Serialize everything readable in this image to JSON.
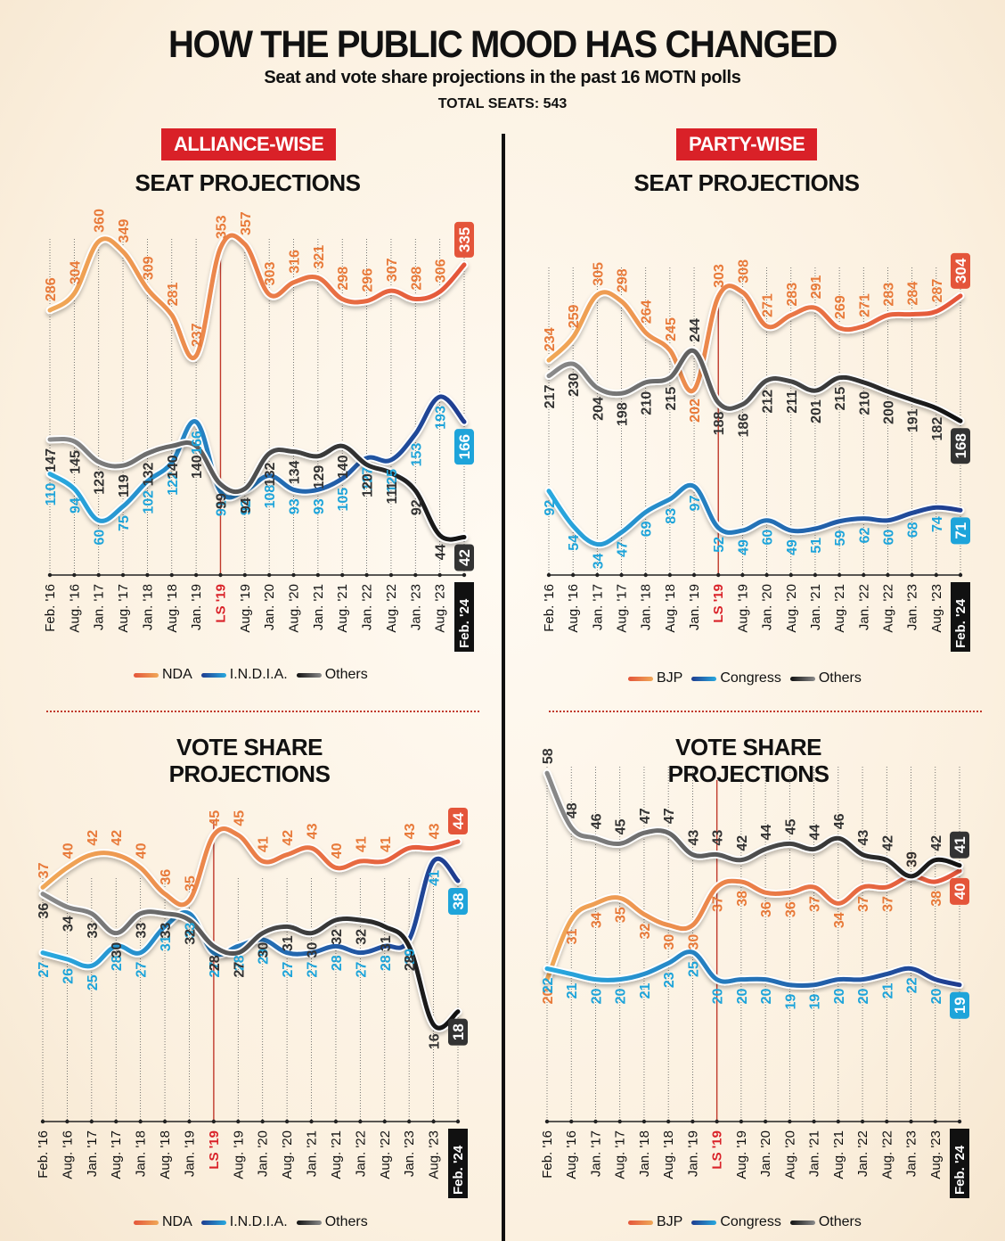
{
  "header": {
    "title": "HOW THE PUBLIC MOOD HAS CHANGED",
    "subtitle": "Seat and vote share projections in the past 16 MOTN polls",
    "total_seats": "TOTAL SEATS: 543"
  },
  "sections": {
    "left_tag": "ALLIANCE-WISE",
    "right_tag": "PARTY-WISE",
    "seat_title": "SEAT PROJECTIONS",
    "vote_title_line1": "VOTE SHARE",
    "vote_title_line2": "PROJECTIONS"
  },
  "colors": {
    "tag_red": "#d92128",
    "ls_marker": "#c0392b",
    "orange_start": "#f0a857",
    "orange_end": "#e4553a",
    "blue_start": "#29a9df",
    "blue_end": "#1f3c8f",
    "grey_start": "#8a8a8a",
    "grey_end": "#111111",
    "label_orange": "#e87a3a",
    "label_blue": "#1ea4da",
    "label_dark": "#333333"
  },
  "chart_data": [
    {
      "id": "alliance-seats",
      "type": "line",
      "title": "SEAT PROJECTIONS",
      "group": "ALLIANCE-WISE",
      "categories": [
        "Feb. '16",
        "Aug. '16",
        "Jan. '17",
        "Aug. '17",
        "Jan. '18",
        "Aug. '18",
        "Jan. '19",
        "LS '19",
        "Aug. '19",
        "Jan. '20",
        "Aug. '20",
        "Jan. '21",
        "Aug. '21",
        "Jan. '22",
        "Aug. '22",
        "Jan. '23",
        "Aug. '23",
        "Feb. '24"
      ],
      "highlight_category": "LS '19",
      "latest_category": "Feb. '24",
      "ylim": [
        30,
        380
      ],
      "series": [
        {
          "name": "NDA",
          "color": "orange",
          "values": [
            286,
            304,
            360,
            349,
            309,
            281,
            237,
            353,
            357,
            303,
            316,
            321,
            298,
            296,
            307,
            298,
            306,
            335
          ]
        },
        {
          "name": "I.N.D.I.A.",
          "color": "blue",
          "values": [
            110,
            94,
            60,
            75,
            102,
            122,
            166,
            91,
            92,
            108,
            93,
            93,
            105,
            127,
            125,
            153,
            193,
            166
          ]
        },
        {
          "name": "Others",
          "color": "grey",
          "values": [
            147,
            145,
            123,
            119,
            132,
            140,
            140,
            99,
            94,
            132,
            134,
            129,
            140,
            120,
            111,
            92,
            44,
            42
          ]
        }
      ],
      "legend": [
        "NDA",
        "I.N.D.I.A.",
        "Others"
      ]
    },
    {
      "id": "party-seats",
      "type": "line",
      "title": "SEAT PROJECTIONS",
      "group": "PARTY-WISE",
      "categories": [
        "Feb. '16",
        "Aug. '16",
        "Jan. '17",
        "Aug. '17",
        "Jan. '18",
        "Aug. '18",
        "Jan. '19",
        "LS '19",
        "Aug. '19",
        "Jan. '20",
        "Aug. '20",
        "Jan. '21",
        "Aug. '21",
        "Jan. '22",
        "Aug. '22",
        "Jan. '23",
        "Aug. '23",
        "Feb. '24"
      ],
      "highlight_category": "LS '19",
      "latest_category": "Feb. '24",
      "ylim": [
        20,
        330
      ],
      "series": [
        {
          "name": "BJP",
          "color": "orange",
          "values": [
            234,
            259,
            305,
            298,
            264,
            245,
            202,
            303,
            308,
            271,
            283,
            291,
            269,
            271,
            283,
            284,
            287,
            304
          ]
        },
        {
          "name": "Congress",
          "color": "blue",
          "values": [
            92,
            54,
            34,
            47,
            69,
            83,
            97,
            52,
            49,
            60,
            49,
            51,
            59,
            62,
            60,
            68,
            74,
            71
          ]
        },
        {
          "name": "Others",
          "color": "grey",
          "values": [
            217,
            230,
            204,
            198,
            210,
            215,
            244,
            188,
            186,
            212,
            211,
            201,
            215,
            210,
            200,
            191,
            182,
            168
          ]
        }
      ],
      "legend": [
        "BJP",
        "Congress",
        "Others"
      ]
    },
    {
      "id": "alliance-vote",
      "type": "line",
      "title": "VOTE SHARE PROJECTIONS",
      "group": "ALLIANCE-WISE",
      "categories": [
        "Feb. '16",
        "Aug. '16",
        "Jan. '17",
        "Aug. '17",
        "Jan. '18",
        "Aug. '18",
        "Jan. '19",
        "LS '19",
        "Aug. '19",
        "Jan. '20",
        "Aug. '20",
        "Jan. '21",
        "Aug. '21",
        "Jan. '22",
        "Aug. '22",
        "Jan. '23",
        "Aug. '23",
        "Feb. '24"
      ],
      "highlight_category": "LS '19",
      "latest_category": "Feb. '24",
      "ylim": [
        5,
        50
      ],
      "series": [
        {
          "name": "NDA",
          "color": "orange",
          "values": [
            37,
            40,
            42,
            42,
            40,
            36,
            35,
            45,
            45,
            41,
            42,
            43,
            40,
            41,
            41,
            43,
            43,
            44
          ]
        },
        {
          "name": "I.N.D.I.A.",
          "color": "blue",
          "values": [
            27,
            26,
            25,
            28,
            27,
            31,
            33,
            27,
            28,
            29,
            27,
            27,
            28,
            27,
            28,
            29,
            41,
            38
          ]
        },
        {
          "name": "Others",
          "color": "grey",
          "values": [
            36,
            34,
            33,
            30,
            33,
            33,
            32,
            28,
            27,
            30,
            31,
            30,
            32,
            32,
            31,
            28,
            16,
            18
          ]
        }
      ],
      "legend": [
        "NDA",
        "I.N.D.I.A.",
        "Others"
      ]
    },
    {
      "id": "party-vote",
      "type": "line",
      "title": "VOTE SHARE PROJECTIONS",
      "group": "PARTY-WISE",
      "categories": [
        "Feb. '16",
        "Aug. '16",
        "Jan. '17",
        "Aug. '17",
        "Jan. '18",
        "Aug. '18",
        "Jan. '19",
        "LS '19",
        "Aug. '19",
        "Jan. '20",
        "Aug. '20",
        "Jan. '21",
        "Aug. '21",
        "Jan. '22",
        "Aug. '22",
        "Jan. '23",
        "Aug. '23",
        "Feb. '24"
      ],
      "highlight_category": "LS '19",
      "latest_category": "Feb. '24",
      "ylim": [
        5,
        60
      ],
      "series": [
        {
          "name": "BJP",
          "color": "orange",
          "values": [
            20,
            31,
            34,
            35,
            32,
            30,
            30,
            37,
            38,
            36,
            36,
            37,
            34,
            37,
            37,
            39,
            38,
            40
          ]
        },
        {
          "name": "Congress",
          "color": "blue",
          "values": [
            22,
            21,
            20,
            20,
            21,
            23,
            25,
            20,
            20,
            20,
            19,
            19,
            20,
            20,
            21,
            22,
            20,
            19
          ]
        },
        {
          "name": "Others",
          "color": "grey",
          "values": [
            58,
            48,
            46,
            45,
            47,
            47,
            43,
            43,
            42,
            44,
            45,
            44,
            46,
            43,
            42,
            39,
            42,
            41
          ]
        }
      ],
      "legend": [
        "BJP",
        "Congress",
        "Others"
      ]
    }
  ]
}
